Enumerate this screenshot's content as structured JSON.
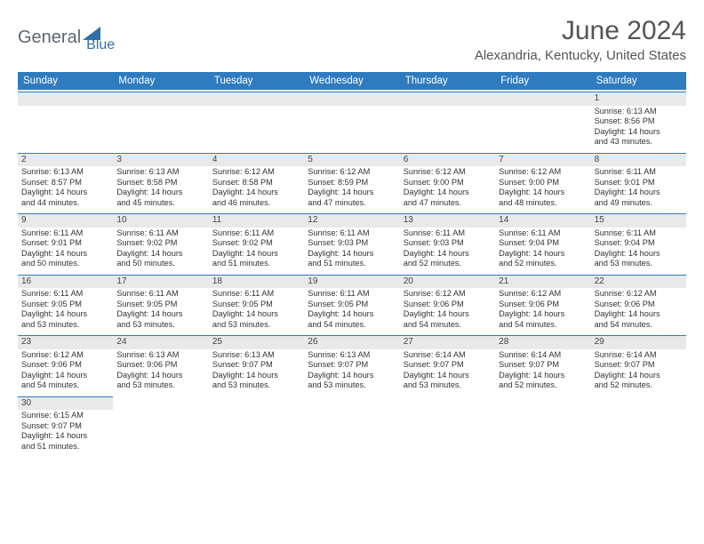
{
  "brand": {
    "text1": "General",
    "text2": "Blue"
  },
  "title": "June 2024",
  "location": "Alexandria, Kentucky, United States",
  "colors": {
    "header_bg": "#2f7bbf",
    "header_text": "#ffffff",
    "daynum_bg": "#e9e9e9",
    "cell_border": "#2f7bbf",
    "body_text": "#333333",
    "title_text": "#555555"
  },
  "daynames": [
    "Sunday",
    "Monday",
    "Tuesday",
    "Wednesday",
    "Thursday",
    "Friday",
    "Saturday"
  ],
  "weeks": [
    [
      null,
      null,
      null,
      null,
      null,
      null,
      {
        "n": "1",
        "sr": "Sunrise: 6:13 AM",
        "ss": "Sunset: 8:56 PM",
        "d1": "Daylight: 14 hours",
        "d2": "and 43 minutes."
      }
    ],
    [
      {
        "n": "2",
        "sr": "Sunrise: 6:13 AM",
        "ss": "Sunset: 8:57 PM",
        "d1": "Daylight: 14 hours",
        "d2": "and 44 minutes."
      },
      {
        "n": "3",
        "sr": "Sunrise: 6:13 AM",
        "ss": "Sunset: 8:58 PM",
        "d1": "Daylight: 14 hours",
        "d2": "and 45 minutes."
      },
      {
        "n": "4",
        "sr": "Sunrise: 6:12 AM",
        "ss": "Sunset: 8:58 PM",
        "d1": "Daylight: 14 hours",
        "d2": "and 46 minutes."
      },
      {
        "n": "5",
        "sr": "Sunrise: 6:12 AM",
        "ss": "Sunset: 8:59 PM",
        "d1": "Daylight: 14 hours",
        "d2": "and 47 minutes."
      },
      {
        "n": "6",
        "sr": "Sunrise: 6:12 AM",
        "ss": "Sunset: 9:00 PM",
        "d1": "Daylight: 14 hours",
        "d2": "and 47 minutes."
      },
      {
        "n": "7",
        "sr": "Sunrise: 6:12 AM",
        "ss": "Sunset: 9:00 PM",
        "d1": "Daylight: 14 hours",
        "d2": "and 48 minutes."
      },
      {
        "n": "8",
        "sr": "Sunrise: 6:11 AM",
        "ss": "Sunset: 9:01 PM",
        "d1": "Daylight: 14 hours",
        "d2": "and 49 minutes."
      }
    ],
    [
      {
        "n": "9",
        "sr": "Sunrise: 6:11 AM",
        "ss": "Sunset: 9:01 PM",
        "d1": "Daylight: 14 hours",
        "d2": "and 50 minutes."
      },
      {
        "n": "10",
        "sr": "Sunrise: 6:11 AM",
        "ss": "Sunset: 9:02 PM",
        "d1": "Daylight: 14 hours",
        "d2": "and 50 minutes."
      },
      {
        "n": "11",
        "sr": "Sunrise: 6:11 AM",
        "ss": "Sunset: 9:02 PM",
        "d1": "Daylight: 14 hours",
        "d2": "and 51 minutes."
      },
      {
        "n": "12",
        "sr": "Sunrise: 6:11 AM",
        "ss": "Sunset: 9:03 PM",
        "d1": "Daylight: 14 hours",
        "d2": "and 51 minutes."
      },
      {
        "n": "13",
        "sr": "Sunrise: 6:11 AM",
        "ss": "Sunset: 9:03 PM",
        "d1": "Daylight: 14 hours",
        "d2": "and 52 minutes."
      },
      {
        "n": "14",
        "sr": "Sunrise: 6:11 AM",
        "ss": "Sunset: 9:04 PM",
        "d1": "Daylight: 14 hours",
        "d2": "and 52 minutes."
      },
      {
        "n": "15",
        "sr": "Sunrise: 6:11 AM",
        "ss": "Sunset: 9:04 PM",
        "d1": "Daylight: 14 hours",
        "d2": "and 53 minutes."
      }
    ],
    [
      {
        "n": "16",
        "sr": "Sunrise: 6:11 AM",
        "ss": "Sunset: 9:05 PM",
        "d1": "Daylight: 14 hours",
        "d2": "and 53 minutes."
      },
      {
        "n": "17",
        "sr": "Sunrise: 6:11 AM",
        "ss": "Sunset: 9:05 PM",
        "d1": "Daylight: 14 hours",
        "d2": "and 53 minutes."
      },
      {
        "n": "18",
        "sr": "Sunrise: 6:11 AM",
        "ss": "Sunset: 9:05 PM",
        "d1": "Daylight: 14 hours",
        "d2": "and 53 minutes."
      },
      {
        "n": "19",
        "sr": "Sunrise: 6:11 AM",
        "ss": "Sunset: 9:05 PM",
        "d1": "Daylight: 14 hours",
        "d2": "and 54 minutes."
      },
      {
        "n": "20",
        "sr": "Sunrise: 6:12 AM",
        "ss": "Sunset: 9:06 PM",
        "d1": "Daylight: 14 hours",
        "d2": "and 54 minutes."
      },
      {
        "n": "21",
        "sr": "Sunrise: 6:12 AM",
        "ss": "Sunset: 9:06 PM",
        "d1": "Daylight: 14 hours",
        "d2": "and 54 minutes."
      },
      {
        "n": "22",
        "sr": "Sunrise: 6:12 AM",
        "ss": "Sunset: 9:06 PM",
        "d1": "Daylight: 14 hours",
        "d2": "and 54 minutes."
      }
    ],
    [
      {
        "n": "23",
        "sr": "Sunrise: 6:12 AM",
        "ss": "Sunset: 9:06 PM",
        "d1": "Daylight: 14 hours",
        "d2": "and 54 minutes."
      },
      {
        "n": "24",
        "sr": "Sunrise: 6:13 AM",
        "ss": "Sunset: 9:06 PM",
        "d1": "Daylight: 14 hours",
        "d2": "and 53 minutes."
      },
      {
        "n": "25",
        "sr": "Sunrise: 6:13 AM",
        "ss": "Sunset: 9:07 PM",
        "d1": "Daylight: 14 hours",
        "d2": "and 53 minutes."
      },
      {
        "n": "26",
        "sr": "Sunrise: 6:13 AM",
        "ss": "Sunset: 9:07 PM",
        "d1": "Daylight: 14 hours",
        "d2": "and 53 minutes."
      },
      {
        "n": "27",
        "sr": "Sunrise: 6:14 AM",
        "ss": "Sunset: 9:07 PM",
        "d1": "Daylight: 14 hours",
        "d2": "and 53 minutes."
      },
      {
        "n": "28",
        "sr": "Sunrise: 6:14 AM",
        "ss": "Sunset: 9:07 PM",
        "d1": "Daylight: 14 hours",
        "d2": "and 52 minutes."
      },
      {
        "n": "29",
        "sr": "Sunrise: 6:14 AM",
        "ss": "Sunset: 9:07 PM",
        "d1": "Daylight: 14 hours",
        "d2": "and 52 minutes."
      }
    ],
    [
      {
        "n": "30",
        "sr": "Sunrise: 6:15 AM",
        "ss": "Sunset: 9:07 PM",
        "d1": "Daylight: 14 hours",
        "d2": "and 51 minutes."
      },
      null,
      null,
      null,
      null,
      null,
      null
    ]
  ]
}
